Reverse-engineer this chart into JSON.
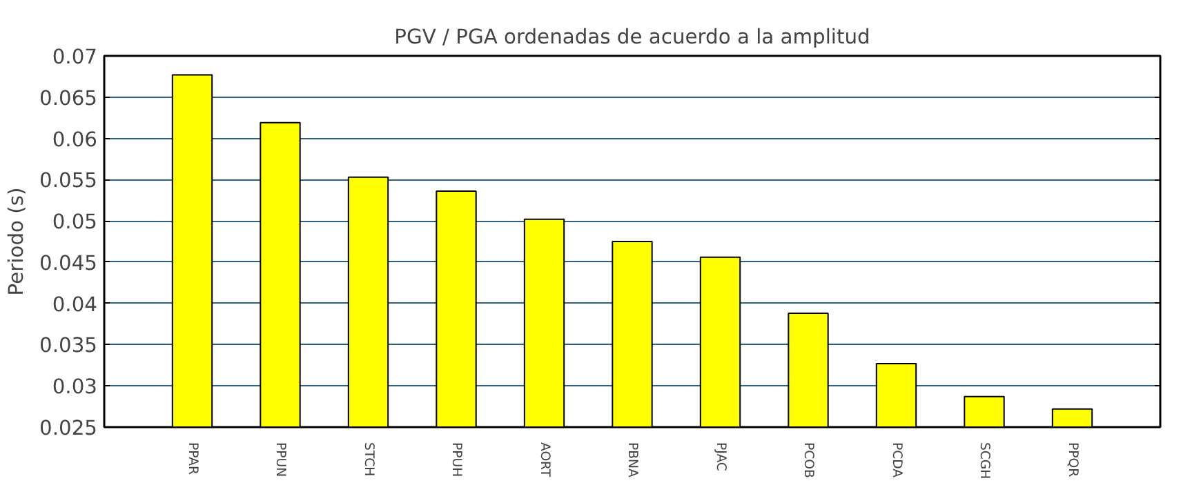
{
  "chart_data": {
    "type": "bar",
    "title": "PGV / PGA ordenadas de acuerdo a la amplitud",
    "ylabel": "Periodo (s)",
    "categories": [
      "PPAR",
      "PPUN",
      "STCH",
      "PPUH",
      "AORT",
      "PBNA",
      "PJAC",
      "PCOB",
      "PCDA",
      "SCGH",
      "PPQR"
    ],
    "values": [
      0.0677,
      0.0619,
      0.0553,
      0.0536,
      0.0502,
      0.0475,
      0.0456,
      0.0388,
      0.0327,
      0.0287,
      0.0272
    ],
    "color": "#ffff00",
    "ylim": [
      0.025,
      0.07
    ],
    "yticks": [
      0.025,
      0.03,
      0.035,
      0.04,
      0.045,
      0.05,
      0.055,
      0.06,
      0.065,
      0.07
    ],
    "grid": "y"
  }
}
